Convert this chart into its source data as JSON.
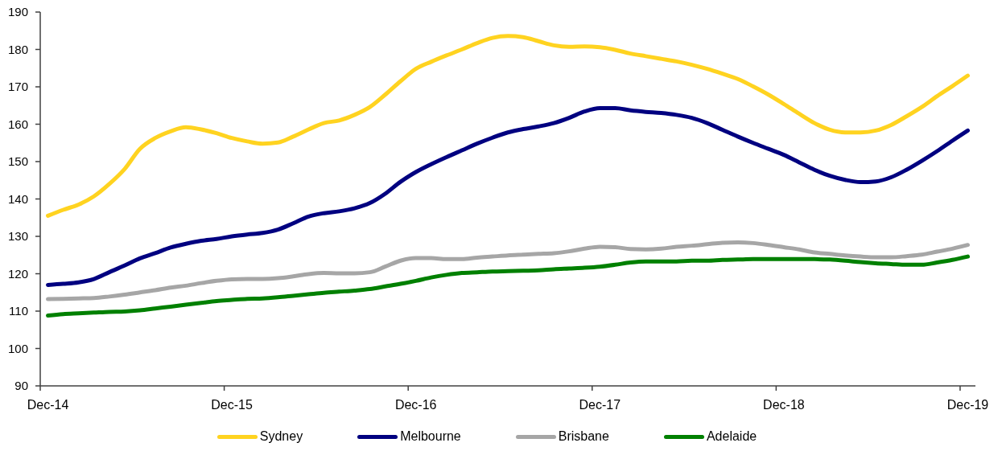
{
  "chart_data": {
    "type": "line",
    "categories": [
      "Dec-14",
      null,
      null,
      null,
      null,
      null,
      null,
      null,
      null,
      null,
      null,
      null,
      "Dec-15",
      null,
      null,
      null,
      null,
      null,
      null,
      null,
      null,
      null,
      null,
      null,
      "Dec-16",
      null,
      null,
      null,
      null,
      null,
      null,
      null,
      null,
      null,
      null,
      null,
      "Dec-17",
      null,
      null,
      null,
      null,
      null,
      null,
      null,
      null,
      null,
      null,
      null,
      "Dec-18",
      null,
      null,
      null,
      null,
      null,
      null,
      null,
      null,
      null,
      null,
      null,
      "Dec-19"
    ],
    "series": [
      {
        "name": "Sydney",
        "color": "#ffd320",
        "values": [
          135.5,
          137.1,
          138.5,
          140.7,
          144,
          148,
          153.4,
          156.3,
          158.1,
          159.2,
          158.6,
          157.6,
          156.3,
          155.4,
          154.8,
          155.1,
          156.7,
          158.6,
          160.3,
          161,
          162.5,
          164.6,
          167.9,
          171.5,
          174.8,
          176.7,
          178.4,
          180,
          181.7,
          183.1,
          183.6,
          183.3,
          182.2,
          181.1,
          180.7,
          180.8,
          180.6,
          179.9,
          178.9,
          178.2,
          177.5,
          176.8,
          175.9,
          174.8,
          173.5,
          172.1,
          170.1,
          167.9,
          165.4,
          162.8,
          160.3,
          158.5,
          157.8,
          157.8,
          158.3,
          159.8,
          162.1,
          164.6,
          167.5,
          170.2,
          173
        ]
      },
      {
        "name": "Melbourne",
        "color": "#000080",
        "values": [
          117,
          117.3,
          117.7,
          118.6,
          120.4,
          122.2,
          124.1,
          125.5,
          127,
          128,
          128.8,
          129.3,
          130,
          130.5,
          130.9,
          131.8,
          133.5,
          135.3,
          136.2,
          136.7,
          137.5,
          138.9,
          141.4,
          144.6,
          147.2,
          149.3,
          151.2,
          153,
          154.8,
          156.4,
          157.8,
          158.7,
          159.4,
          160.3,
          161.7,
          163.4,
          164.3,
          164.3,
          163.7,
          163.3,
          163,
          162.5,
          161.7,
          160.3,
          158.5,
          156.7,
          155,
          153.4,
          151.8,
          149.8,
          147.8,
          146.2,
          145.1,
          144.5,
          144.7,
          145.8,
          147.8,
          150.2,
          152.8,
          155.6,
          158.3
        ]
      },
      {
        "name": "Brisbane",
        "color": "#a6a6a6",
        "values": [
          113.2,
          113.3,
          113.4,
          113.5,
          113.9,
          114.4,
          115,
          115.6,
          116.3,
          116.8,
          117.5,
          118.1,
          118.5,
          118.6,
          118.6,
          118.8,
          119.3,
          119.9,
          120.2,
          120.1,
          120.1,
          120.4,
          121.9,
          123.5,
          124.2,
          124.2,
          123.9,
          123.9,
          124.3,
          124.6,
          124.9,
          125.1,
          125.3,
          125.5,
          126,
          126.7,
          127.2,
          127.1,
          126.6,
          126.5,
          126.7,
          127.2,
          127.5,
          127.9,
          128.3,
          128.4,
          128.2,
          127.7,
          127.1,
          126.5,
          125.7,
          125.3,
          124.9,
          124.6,
          124.4,
          124.4,
          124.7,
          125.1,
          125.9,
          126.7,
          127.7
        ]
      },
      {
        "name": "Adelaide",
        "color": "#008000",
        "values": [
          108.8,
          109.2,
          109.4,
          109.6,
          109.8,
          109.9,
          110.2,
          110.7,
          111.2,
          111.7,
          112.2,
          112.7,
          113,
          113.3,
          113.4,
          113.7,
          114.1,
          114.5,
          114.9,
          115.2,
          115.5,
          115.9,
          116.6,
          117.3,
          118.1,
          119,
          119.7,
          120.2,
          120.4,
          120.6,
          120.7,
          120.8,
          120.9,
          121.2,
          121.4,
          121.6,
          121.9,
          122.4,
          123,
          123.3,
          123.3,
          123.3,
          123.5,
          123.5,
          123.7,
          123.8,
          123.9,
          123.9,
          123.9,
          123.9,
          123.9,
          123.8,
          123.5,
          123.1,
          122.8,
          122.6,
          122.4,
          122.4,
          123,
          123.7,
          124.6
        ]
      }
    ],
    "ylim": [
      90,
      190
    ],
    "yticks": [
      90,
      100,
      110,
      120,
      130,
      140,
      150,
      160,
      170,
      180,
      190
    ],
    "legend": "bottom",
    "line_style": "solid"
  }
}
